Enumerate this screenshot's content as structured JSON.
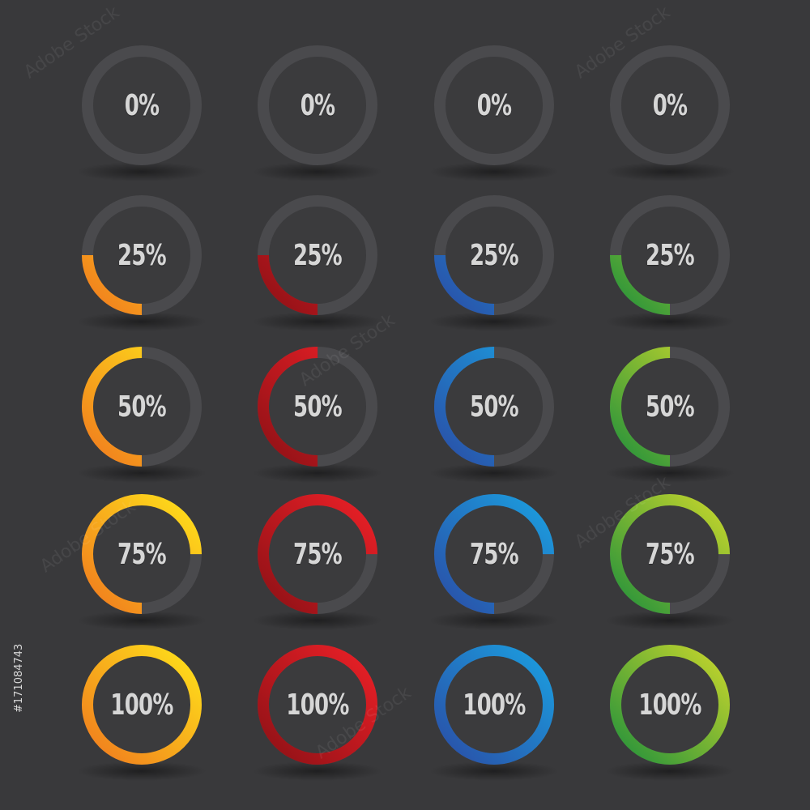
{
  "watermark": "Adobe Stock",
  "stock_id": "#171084743",
  "track_color": "#4a4a4d",
  "themes": [
    {
      "name": "yellow-orange",
      "from": "#ffe21a",
      "to": "#f07a1e"
    },
    {
      "name": "red",
      "from": "#ec2027",
      "to": "#8e1116"
    },
    {
      "name": "blue",
      "from": "#1b9fe0",
      "to": "#2a4ea6"
    },
    {
      "name": "green",
      "from": "#c7d62c",
      "to": "#24913b"
    }
  ],
  "rows": [
    {
      "label": "0%",
      "progress": 0
    },
    {
      "label": "25%",
      "progress": 0.25
    },
    {
      "label": "50%",
      "progress": 0.5
    },
    {
      "label": "75%",
      "progress": 0.75
    },
    {
      "label": "100%",
      "progress": 1
    }
  ]
}
